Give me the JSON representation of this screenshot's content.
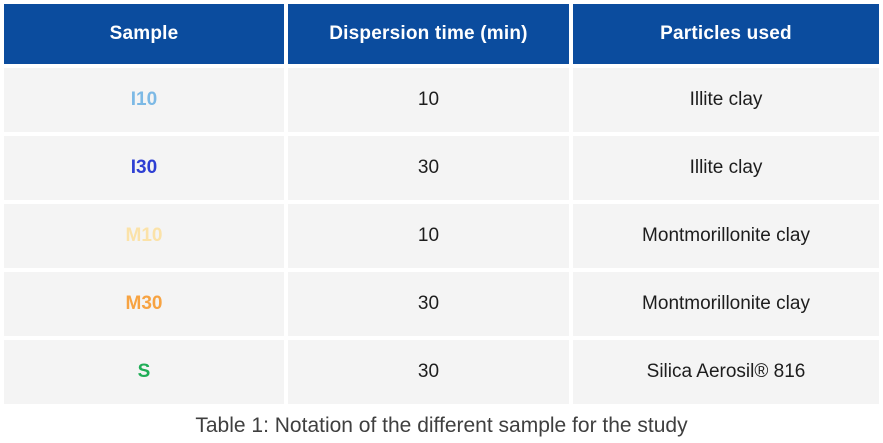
{
  "chart_data": {
    "type": "table",
    "title": "Table 1: Notation of the different sample for the study",
    "columns": [
      "Sample",
      "Dispersion time (min)",
      "Particles used"
    ],
    "rows": [
      {
        "sample": "I10",
        "sample_color": "#7cb9e5",
        "dispersion_time_min": "10",
        "particles_used": "Illite clay"
      },
      {
        "sample": "I30",
        "sample_color": "#2e3fd3",
        "dispersion_time_min": "30",
        "particles_used": "Illite clay"
      },
      {
        "sample": "M10",
        "sample_color": "#fbe2a8",
        "dispersion_time_min": "10",
        "particles_used": "Montmorillonite clay"
      },
      {
        "sample": "M30",
        "sample_color": "#f7a342",
        "dispersion_time_min": "30",
        "particles_used": "Montmorillonite clay"
      },
      {
        "sample": "S",
        "sample_color": "#1fad56",
        "dispersion_time_min": "30",
        "particles_used": "Silica Aerosil® 816"
      }
    ]
  },
  "colors": {
    "header_bg": "#0b4c9e",
    "header_text": "#ffffff",
    "row_bg": "#f4f4f4",
    "cell_text": "#1d1d1d",
    "caption_text": "#3f3f3f"
  }
}
